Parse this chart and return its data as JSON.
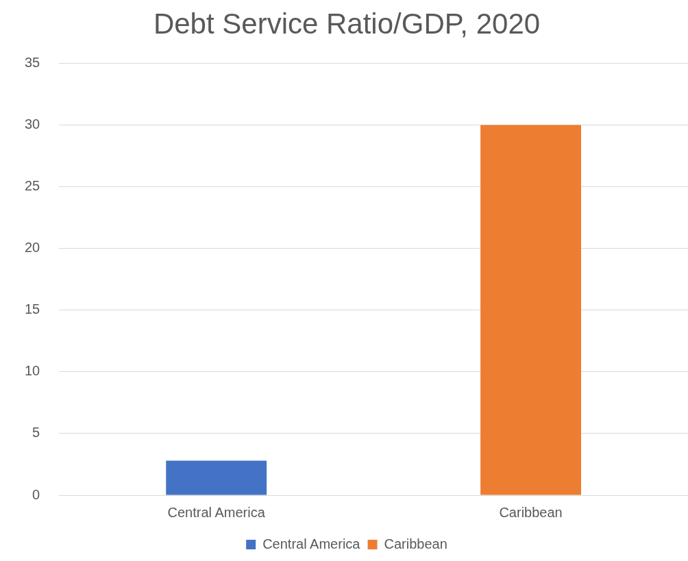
{
  "chart_data": {
    "type": "bar",
    "title": "Debt Service Ratio/GDP, 2020",
    "categories": [
      "Central America",
      "Caribbean"
    ],
    "series": [
      {
        "name": "Central America",
        "color": "#4472c4",
        "values": [
          2.8,
          null
        ]
      },
      {
        "name": "Caribbean",
        "color": "#ed7d31",
        "values": [
          null,
          30
        ]
      }
    ],
    "ylim": [
      0,
      35
    ],
    "yticks": [
      0,
      5,
      10,
      15,
      20,
      25,
      30,
      35
    ],
    "grid": "y",
    "legend": "bottom"
  }
}
